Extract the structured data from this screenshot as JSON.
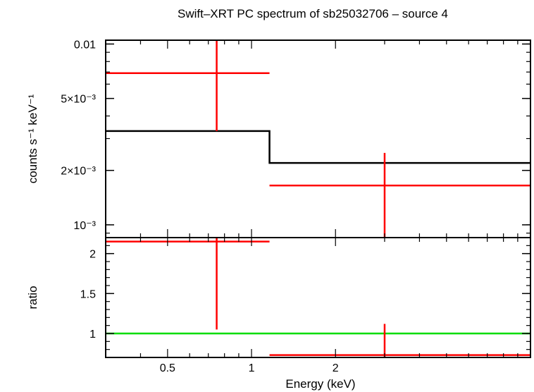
{
  "chart_data": {
    "type": "scatter",
    "title": "Swift–XRT PC spectrum of sb25032706 – source 4",
    "xlabel": "Energy (keV)",
    "x_scale": "log",
    "xlim": [
      0.3,
      10
    ],
    "x_ticks": [
      {
        "value": 0.5,
        "label": "0.5"
      },
      {
        "value": 1,
        "label": "1"
      },
      {
        "value": 2,
        "label": "2"
      }
    ],
    "panels": [
      {
        "name": "spectrum",
        "ylabel": "counts s⁻¹ keV⁻¹",
        "y_scale": "log",
        "ylim": [
          0.00085,
          0.0105
        ],
        "y_ticks": [
          {
            "value": 0.01,
            "label": "0.01"
          },
          {
            "value": 0.005,
            "label": "5×10⁻³"
          },
          {
            "value": 0.002,
            "label": "2×10⁻³"
          },
          {
            "value": 0.001,
            "label": "10⁻³"
          }
        ],
        "data": [
          {
            "x": 0.75,
            "xlo": 0.3,
            "xhi": 1.16,
            "y": 0.0069,
            "ylo": 0.0033,
            "yhi": 0.0105,
            "color": "#ff0000"
          },
          {
            "x": 3.0,
            "xlo": 1.16,
            "xhi": 10,
            "y": 0.00165,
            "ylo": 0.00085,
            "yhi": 0.0025,
            "color": "#ff0000"
          }
        ],
        "model": {
          "color": "#000000",
          "steps": [
            {
              "x0": 0.3,
              "x1": 1.16,
              "y": 0.0033
            },
            {
              "x0": 1.16,
              "x1": 10,
              "y": 0.0022
            }
          ]
        }
      },
      {
        "name": "ratio",
        "ylabel": "ratio",
        "y_scale": "linear",
        "ylim": [
          0.7,
          2.2
        ],
        "y_ticks": [
          {
            "value": 2,
            "label": "2"
          },
          {
            "value": 1.5,
            "label": "1.5"
          },
          {
            "value": 1,
            "label": "1"
          }
        ],
        "data": [
          {
            "x": 0.75,
            "xlo": 0.3,
            "xhi": 1.16,
            "y": 2.15,
            "ylo": 1.05,
            "yhi": 2.2,
            "color": "#ff0000"
          },
          {
            "x": 3.0,
            "xlo": 1.16,
            "xhi": 10,
            "y": 0.73,
            "ylo": 0.7,
            "yhi": 1.12,
            "color": "#ff0000"
          }
        ],
        "reference_line": {
          "y": 1,
          "color": "#00dd00"
        }
      }
    ]
  }
}
